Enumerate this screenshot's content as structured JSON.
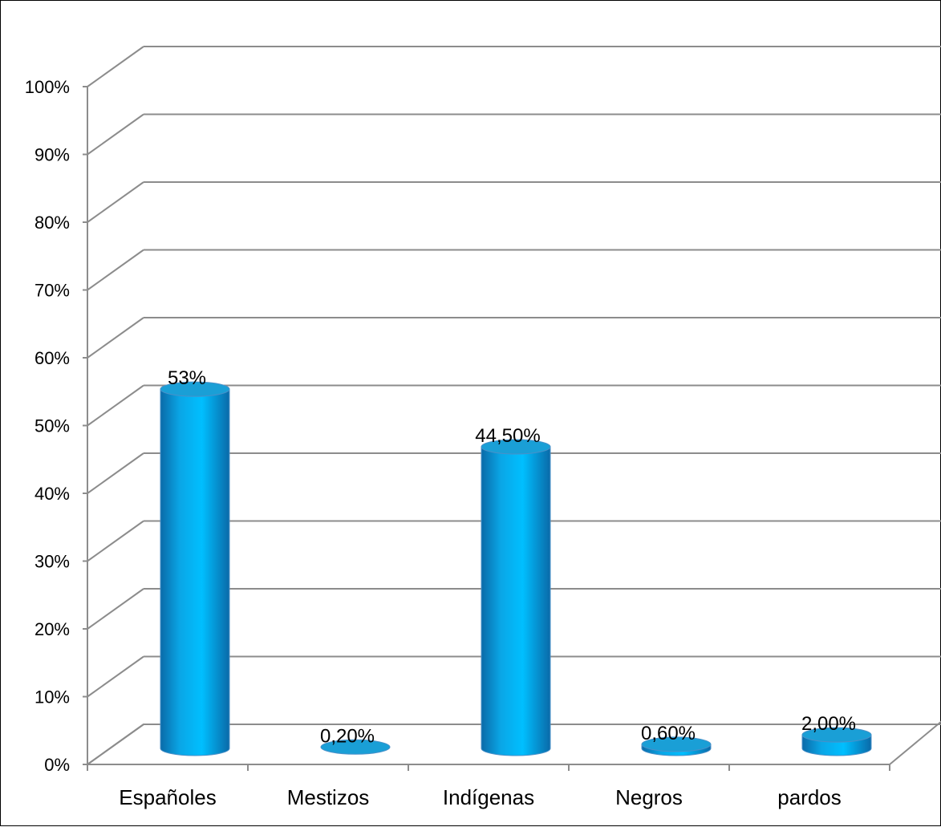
{
  "chart_data": {
    "type": "bar",
    "style": "3d-cylinder",
    "categories": [
      "Españoles",
      "Mestizos",
      "Indígenas",
      "Negros",
      "pardos"
    ],
    "values": [
      53,
      0.2,
      44.5,
      0.6,
      2.0
    ],
    "data_labels": [
      "53%",
      "0,20%",
      "44,50%",
      "0,60%",
      "2,00%"
    ],
    "ylim": [
      0,
      100
    ],
    "ytick_labels": [
      "0%",
      "10%",
      "20%",
      "30%",
      "40%",
      "50%",
      "60%",
      "70%",
      "80%",
      "90%",
      "100%"
    ],
    "grid": true,
    "legend": "none",
    "colors": {
      "bar_light": "#00bfff",
      "bar_mid": "#0aa6e6",
      "bar_dark": "#0a6aa8",
      "bar_top": "#1a9fd6",
      "grid": "#8c8c8c"
    }
  }
}
